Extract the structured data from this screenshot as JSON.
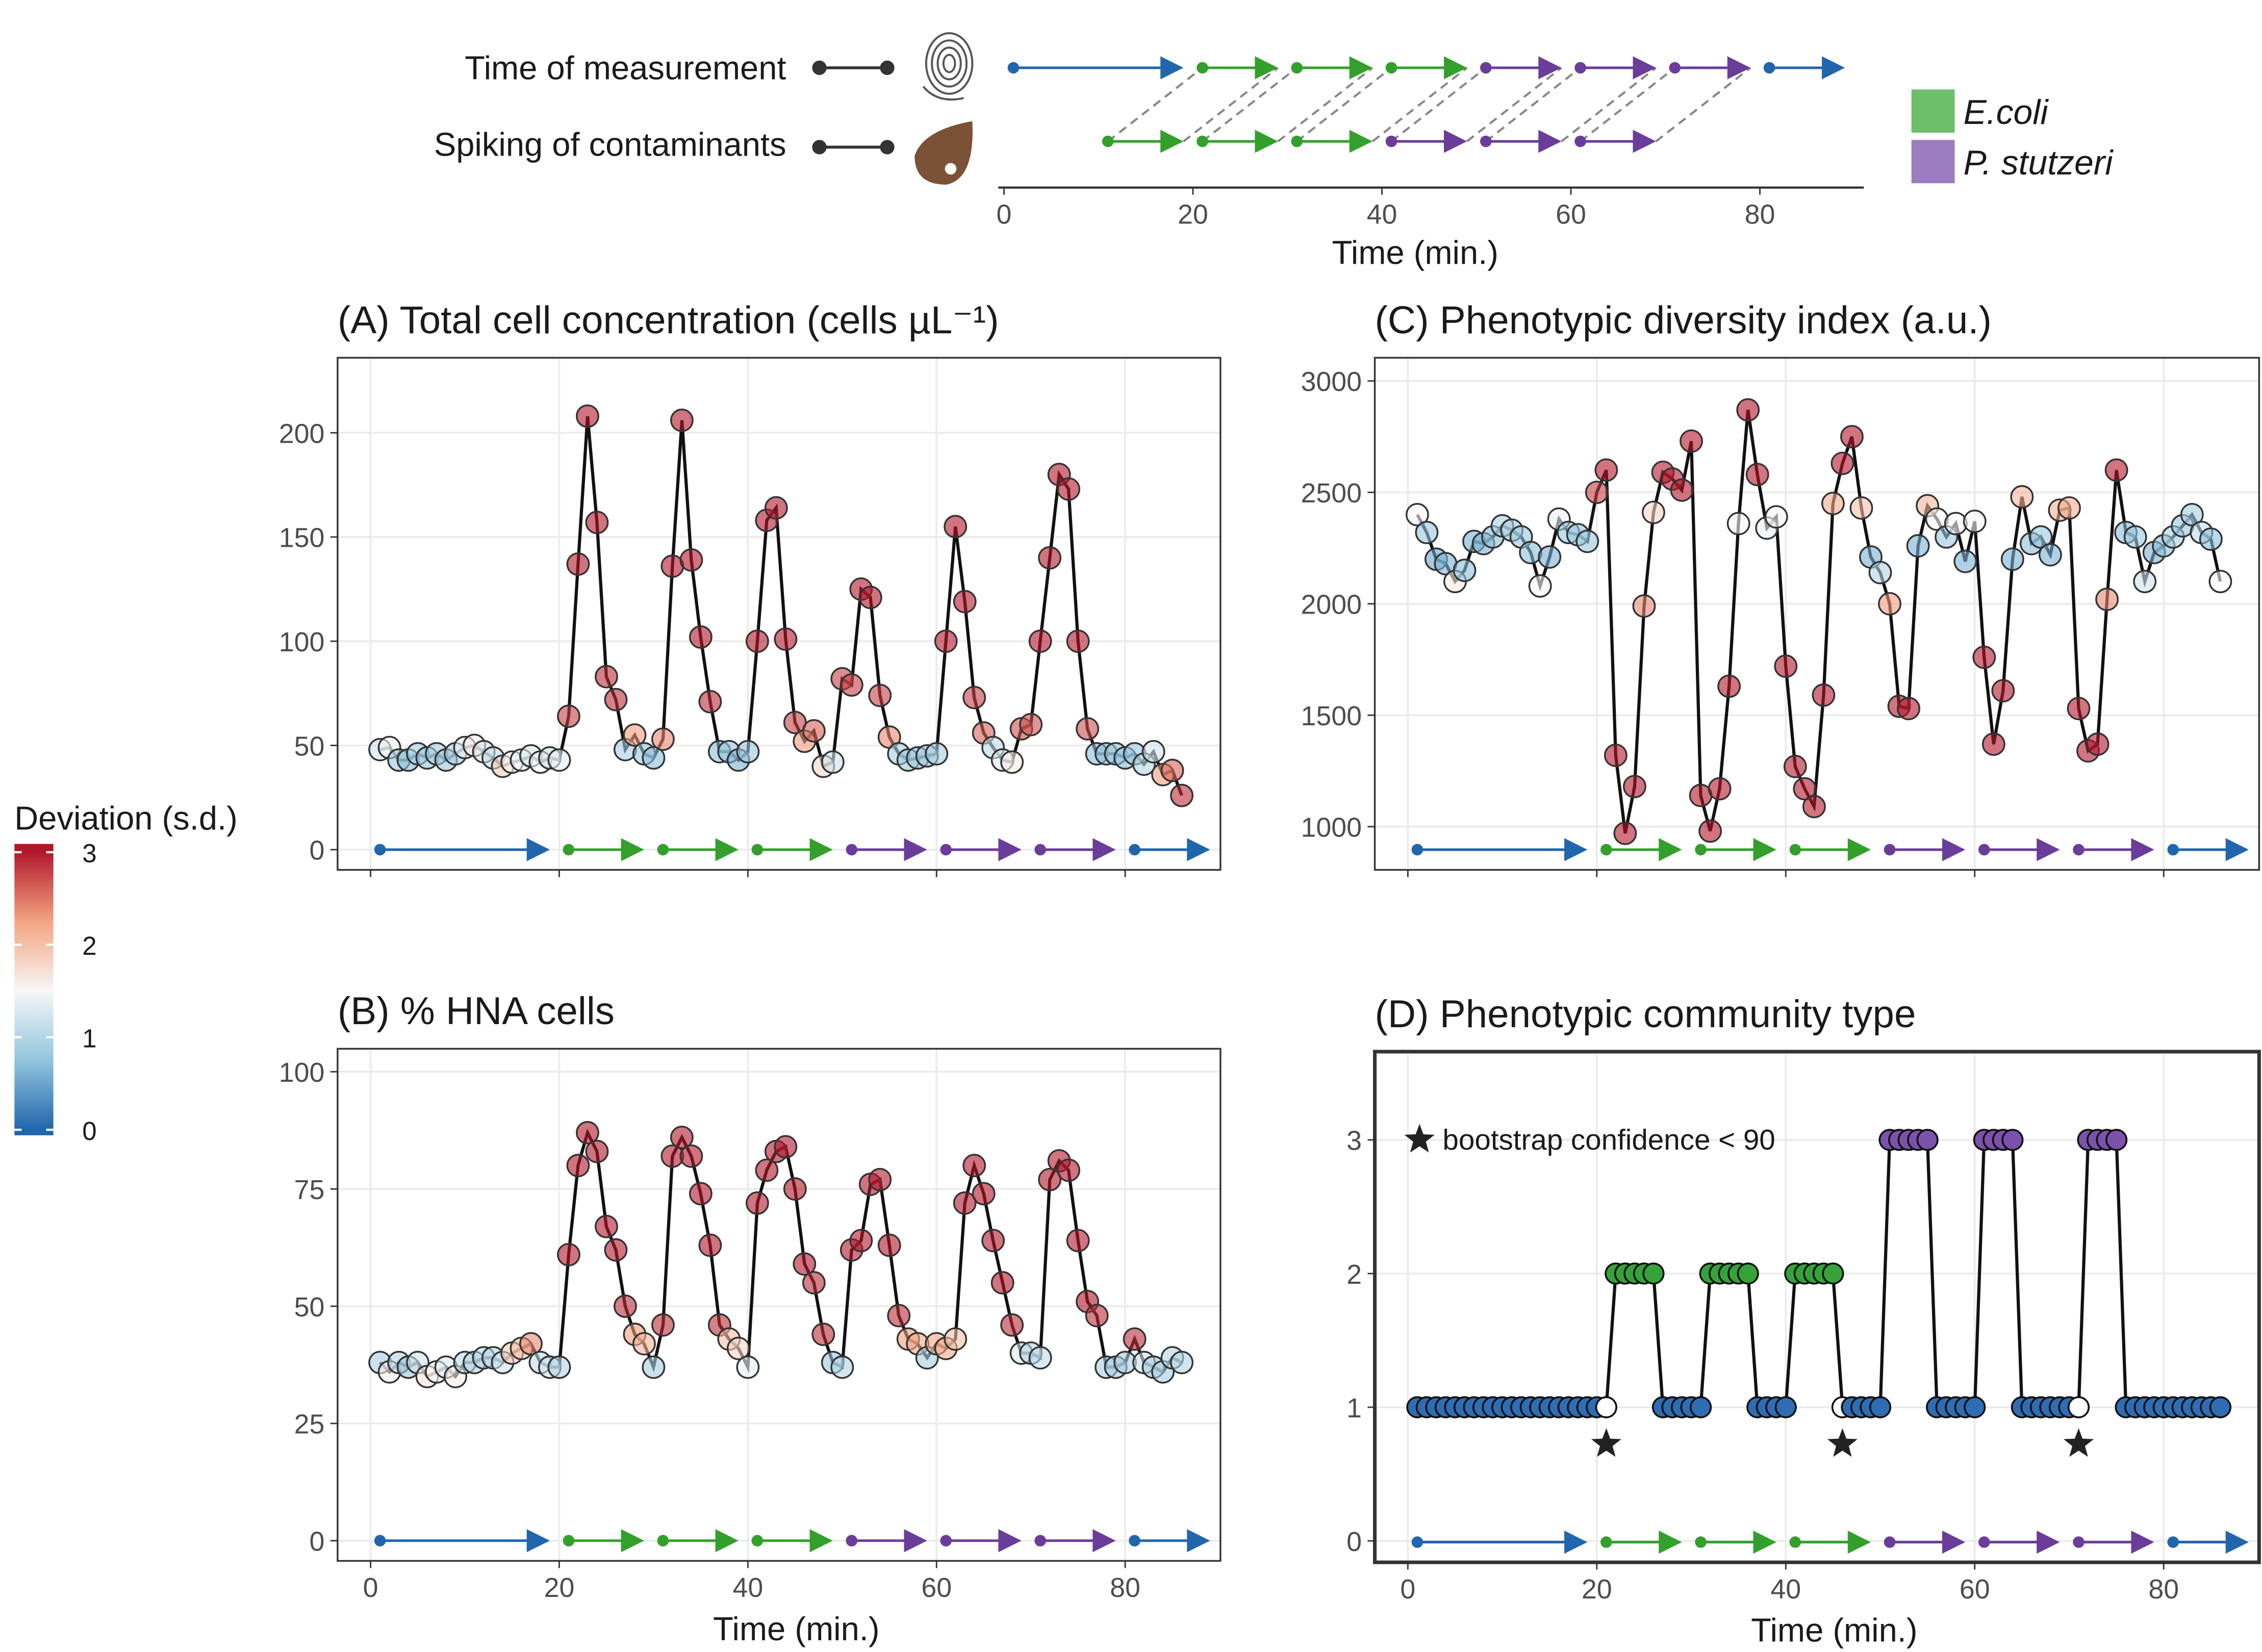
{
  "schematic": {
    "rows": [
      "Time of measurement",
      "Spiking of contaminants"
    ],
    "measurement": [
      {
        "start": 1,
        "end": 19,
        "color": "#2166ac"
      },
      {
        "start": 21,
        "end": 29,
        "color": "#33a02c"
      },
      {
        "start": 31,
        "end": 39,
        "color": "#33a02c"
      },
      {
        "start": 41,
        "end": 49,
        "color": "#33a02c"
      },
      {
        "start": 51,
        "end": 59,
        "color": "#6a3d9a"
      },
      {
        "start": 61,
        "end": 69,
        "color": "#6a3d9a"
      },
      {
        "start": 71,
        "end": 79,
        "color": "#6a3d9a"
      },
      {
        "start": 81,
        "end": 89,
        "color": "#2166ac"
      }
    ],
    "spiking": [
      {
        "start": 11,
        "end": 19,
        "color": "#33a02c"
      },
      {
        "start": 21,
        "end": 29,
        "color": "#33a02c"
      },
      {
        "start": 31,
        "end": 39,
        "color": "#33a02c"
      },
      {
        "start": 41,
        "end": 49,
        "color": "#6a3d9a"
      },
      {
        "start": 51,
        "end": 59,
        "color": "#6a3d9a"
      },
      {
        "start": 61,
        "end": 69,
        "color": "#6a3d9a"
      }
    ],
    "xlim": [
      -0.6,
      91
    ],
    "xticks": [
      0,
      20,
      40,
      60,
      80
    ],
    "xlabel": "Time (min.)"
  },
  "legend": [
    {
      "name": "E.coli",
      "color": "#6dbf6a"
    },
    {
      "name": "P. stutzeri",
      "color": "#9b7cc0"
    }
  ],
  "colorbar": {
    "title": "Deviation (s.d.)",
    "lim": [
      -0.06,
      3.09
    ],
    "domain": [
      0,
      3
    ],
    "ticks": [
      0,
      1,
      2,
      3
    ],
    "colors": [
      "#2166ac",
      "#92c5de",
      "#f7f7f7",
      "#f4a582",
      "#b2182b"
    ]
  },
  "chart_data": [
    {
      "type": "line",
      "title": "(A) Total cell concentration (cells µL⁻¹)",
      "xlim": [
        -3.5,
        90.1
      ],
      "ylim": [
        -9.7,
        236
      ],
      "xticks": [
        0,
        20,
        40,
        60,
        80
      ],
      "yticks": [
        0,
        50,
        100,
        150,
        200
      ],
      "xtick_labels": false,
      "grid": true,
      "x": [
        1,
        2,
        3,
        4,
        5,
        6,
        7,
        8,
        9,
        10,
        11,
        12,
        13,
        14,
        15,
        16,
        17,
        18,
        19,
        20,
        21,
        22,
        23,
        24,
        25,
        26,
        27,
        28,
        29,
        30,
        31,
        32,
        33,
        34,
        35,
        36,
        37,
        38,
        39,
        40,
        41,
        42,
        43,
        44,
        45,
        46,
        47,
        48,
        49,
        50,
        51,
        52,
        53,
        54,
        55,
        56,
        57,
        58,
        59,
        60,
        61,
        62,
        63,
        64,
        65,
        66,
        67,
        68,
        69,
        70,
        71,
        72,
        73,
        74,
        75,
        76,
        77,
        78,
        79,
        80,
        81,
        82,
        83,
        84,
        85,
        86
      ],
      "series": [
        {
          "values": [
            48,
            49,
            43,
            43,
            46,
            44,
            46,
            43,
            46,
            49,
            50,
            47,
            44,
            40,
            42,
            43,
            45,
            42,
            44,
            43,
            64,
            137,
            208,
            157,
            83,
            72,
            48,
            55,
            46,
            44,
            53,
            136,
            206,
            139,
            102,
            71,
            47,
            47,
            43,
            47,
            100,
            158,
            164,
            101,
            61,
            52,
            57,
            40,
            42,
            82,
            79,
            125,
            121,
            74,
            54,
            46,
            43,
            44,
            45,
            46,
            100,
            155,
            119,
            73,
            56,
            49,
            43,
            42,
            58,
            60,
            100,
            140,
            180,
            173,
            100,
            58,
            46,
            46,
            46,
            44,
            46,
            41,
            47,
            36,
            38,
            26
          ],
          "deviation": [
            1.2,
            1.5,
            0.8,
            0.7,
            0.9,
            0.8,
            0.9,
            0.8,
            0.9,
            1.4,
            1.6,
            1.3,
            1.1,
            1.9,
            1.5,
            1.4,
            1.3,
            1.5,
            1.2,
            1.4,
            2.8,
            3,
            3,
            3,
            2.9,
            2.9,
            0.9,
            2.3,
            0.8,
            0.7,
            2.4,
            3,
            3,
            3,
            3,
            2.9,
            0.7,
            0.8,
            0.6,
            0.8,
            3,
            3,
            3,
            3,
            2.8,
            2.3,
            2.6,
            1.8,
            1.2,
            2.8,
            2.8,
            3,
            3,
            2.8,
            2.4,
            0.9,
            0.8,
            0.8,
            0.8,
            0.9,
            3,
            3,
            3,
            2.8,
            2.6,
            1.1,
            1.3,
            1.6,
            2.7,
            2.7,
            3,
            3,
            3,
            3,
            3,
            2.7,
            0.7,
            0.7,
            0.8,
            0.7,
            0.8,
            1.0,
            1.2,
            2.3,
            2.6,
            2.9
          ]
        }
      ]
    },
    {
      "type": "line",
      "title": "(B) % HNA cells",
      "xlabel": "Time (min.)",
      "xlim": [
        -3.5,
        90.1
      ],
      "ylim": [
        -4.3,
        104.9
      ],
      "xticks": [
        0,
        20,
        40,
        60,
        80
      ],
      "yticks": [
        0,
        25,
        50,
        75,
        100
      ],
      "grid": true,
      "x": [
        1,
        2,
        3,
        4,
        5,
        6,
        7,
        8,
        9,
        10,
        11,
        12,
        13,
        14,
        15,
        16,
        17,
        18,
        19,
        20,
        21,
        22,
        23,
        24,
        25,
        26,
        27,
        28,
        29,
        30,
        31,
        32,
        33,
        34,
        35,
        36,
        37,
        38,
        39,
        40,
        41,
        42,
        43,
        44,
        45,
        46,
        47,
        48,
        49,
        50,
        51,
        52,
        53,
        54,
        55,
        56,
        57,
        58,
        59,
        60,
        61,
        62,
        63,
        64,
        65,
        66,
        67,
        68,
        69,
        70,
        71,
        72,
        73,
        74,
        75,
        76,
        77,
        78,
        79,
        80,
        81,
        82,
        83,
        84,
        85,
        86
      ],
      "series": [
        {
          "values": [
            38,
            36,
            38,
            37,
            38,
            35,
            36,
            37,
            35,
            38,
            38,
            39,
            39,
            38,
            40,
            41,
            42,
            38,
            37,
            37,
            61,
            80,
            87,
            83,
            67,
            62,
            50,
            44,
            42,
            37,
            46,
            82,
            86,
            82,
            74,
            63,
            46,
            43,
            41,
            37,
            72,
            79,
            83,
            84,
            75,
            59,
            55,
            44,
            38,
            37,
            62,
            64,
            76,
            77,
            63,
            48,
            43,
            42,
            39,
            42,
            41,
            43,
            72,
            80,
            74,
            64,
            55,
            46,
            40,
            40,
            39,
            77,
            81,
            79,
            64,
            51,
            48,
            37,
            37,
            38,
            43,
            38,
            37,
            36,
            39,
            38
          ],
          "deviation": [
            0.9,
            1.6,
            1.0,
            0.8,
            1.2,
            1.7,
            1.5,
            1.3,
            1.6,
            1.1,
            1.0,
            1.0,
            1.0,
            1.2,
            1.9,
            2.0,
            2.4,
            1.1,
            1.2,
            1.0,
            3,
            3,
            3,
            3,
            3,
            3,
            2.9,
            2.3,
            2.1,
            0.9,
            2.9,
            3,
            3,
            3,
            3,
            3,
            2.9,
            2.0,
            1.8,
            1.4,
            3,
            3,
            3,
            3,
            3,
            3,
            2.9,
            2.9,
            0.8,
            1.0,
            3,
            3,
            3,
            3,
            3,
            2.9,
            2.3,
            2.2,
            0.9,
            2.2,
            2.2,
            2.0,
            3,
            3,
            3,
            3,
            3,
            2.9,
            1.3,
            1.0,
            1.1,
            3,
            3,
            3,
            3,
            3,
            2.9,
            0.9,
            0.9,
            0.9,
            2.9,
            1.2,
            0.9,
            0.9,
            1.0,
            1.0
          ]
        }
      ]
    },
    {
      "type": "line",
      "title": "(C) Phenotypic diversity index (a.u.)",
      "xlim": [
        -3.5,
        90.1
      ],
      "ylim": [
        806,
        3104
      ],
      "xticks": [
        0,
        20,
        40,
        60,
        80
      ],
      "yticks": [
        1000,
        1500,
        2000,
        2500,
        3000
      ],
      "xtick_labels": false,
      "grid": true,
      "x": [
        1,
        2,
        3,
        4,
        5,
        6,
        7,
        8,
        9,
        10,
        11,
        12,
        13,
        14,
        15,
        16,
        17,
        18,
        19,
        20,
        21,
        22,
        23,
        24,
        25,
        26,
        27,
        28,
        29,
        30,
        31,
        32,
        33,
        34,
        35,
        36,
        37,
        38,
        39,
        40,
        41,
        42,
        43,
        44,
        45,
        46,
        47,
        48,
        49,
        50,
        51,
        52,
        53,
        54,
        55,
        56,
        57,
        58,
        59,
        60,
        61,
        62,
        63,
        64,
        65,
        66,
        67,
        68,
        69,
        70,
        71,
        72,
        73,
        74,
        75,
        76,
        77,
        78,
        79,
        80,
        81,
        82,
        83,
        84,
        85,
        86
      ],
      "series": [
        {
          "values": [
            2400,
            2320,
            2200,
            2180,
            2100,
            2150,
            2280,
            2270,
            2300,
            2350,
            2330,
            2300,
            2230,
            2080,
            2210,
            2380,
            2320,
            2310,
            2280,
            2500,
            2600,
            1320,
            970,
            1180,
            1990,
            2410,
            2590,
            2560,
            2510,
            2730,
            1140,
            980,
            1170,
            1630,
            2360,
            2870,
            2580,
            2340,
            2390,
            1720,
            1270,
            1170,
            1090,
            1590,
            2450,
            2630,
            2750,
            2430,
            2210,
            2140,
            2000,
            1540,
            1530,
            2260,
            2440,
            2380,
            2300,
            2360,
            2190,
            2370,
            1760,
            1370,
            1610,
            2200,
            2480,
            2270,
            2300,
            2220,
            2420,
            2430,
            1530,
            1340,
            1370,
            2020,
            2600,
            2320,
            2300,
            2100,
            2230,
            2260,
            2300,
            2350,
            2400,
            2320,
            2290,
            2100
          ],
          "deviation": [
            1.5,
            0.8,
            0.5,
            0.6,
            1.6,
            0.7,
            0.6,
            0.6,
            0.7,
            0.9,
            0.9,
            0.8,
            0.7,
            1.5,
            0.6,
            1.4,
            0.8,
            0.8,
            0.8,
            2.8,
            3,
            3,
            3,
            3,
            2.4,
            1.8,
            3,
            3,
            3,
            3,
            3,
            3,
            3,
            3,
            1.5,
            3,
            3,
            1.4,
            1.5,
            3,
            3,
            3,
            3,
            3,
            2.2,
            3,
            3,
            2.0,
            0.6,
            1.0,
            2.3,
            3,
            3,
            0.6,
            2.1,
            1.5,
            0.8,
            1.5,
            0.6,
            1.5,
            3,
            3,
            3,
            0.6,
            2.1,
            0.7,
            0.8,
            0.6,
            2.1,
            2.2,
            3,
            3,
            3,
            2.4,
            3,
            0.7,
            0.8,
            1.2,
            0.6,
            0.7,
            0.9,
            0.8,
            0.9,
            1.1,
            0.7,
            1.5
          ]
        }
      ]
    },
    {
      "type": "line",
      "title": "(D) Phenotypic community type",
      "xlabel": "Time (min.)",
      "annotation": "bootstrap confidence < 90",
      "xlim": [
        -3.5,
        90.1
      ],
      "ylim": [
        -0.16,
        3.66
      ],
      "xticks": [
        0,
        20,
        40,
        60,
        80
      ],
      "yticks": [
        0,
        1,
        2,
        3
      ],
      "grid": true,
      "x": [
        1,
        2,
        3,
        4,
        5,
        6,
        7,
        8,
        9,
        10,
        11,
        12,
        13,
        14,
        15,
        16,
        17,
        18,
        19,
        20,
        21,
        22,
        23,
        24,
        25,
        26,
        27,
        28,
        29,
        30,
        31,
        32,
        33,
        34,
        35,
        36,
        37,
        38,
        39,
        40,
        41,
        42,
        43,
        44,
        45,
        46,
        47,
        48,
        49,
        50,
        51,
        52,
        53,
        54,
        55,
        56,
        57,
        58,
        59,
        60,
        61,
        62,
        63,
        64,
        65,
        66,
        67,
        68,
        69,
        70,
        71,
        72,
        73,
        74,
        75,
        76,
        77,
        78,
        79,
        80,
        81,
        82,
        83,
        84,
        85,
        86
      ],
      "series": [
        {
          "values": [
            1,
            1,
            1,
            1,
            1,
            1,
            1,
            1,
            1,
            1,
            1,
            1,
            1,
            1,
            1,
            1,
            1,
            1,
            1,
            1,
            1,
            2,
            2,
            2,
            2,
            2,
            1,
            1,
            1,
            1,
            1,
            2,
            2,
            2,
            2,
            2,
            1,
            1,
            1,
            1,
            2,
            2,
            2,
            2,
            2,
            1,
            1,
            1,
            1,
            1,
            3,
            3,
            3,
            3,
            3,
            1,
            1,
            1,
            1,
            1,
            3,
            3,
            3,
            3,
            1,
            1,
            1,
            1,
            1,
            1,
            1,
            3,
            3,
            3,
            3,
            1,
            1,
            1,
            1,
            1,
            1,
            1,
            1,
            1,
            1,
            1
          ],
          "colors": {
            "1": "#2e6db4",
            "2": "#35a33a",
            "3": "#7b52ab"
          }
        }
      ],
      "low_confidence": [
        21,
        46,
        71
      ]
    }
  ]
}
